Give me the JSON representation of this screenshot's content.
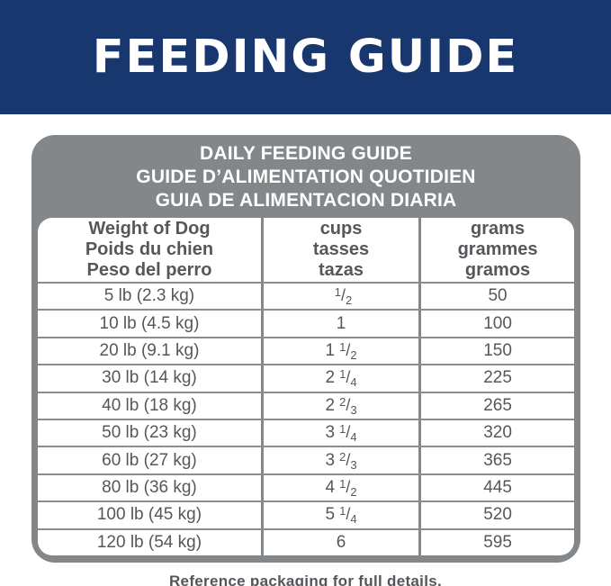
{
  "banner": {
    "title": "FEEDING GUIDE"
  },
  "colors": {
    "banner_bg": "#17376E",
    "card_gray": "#848789",
    "text_gray": "#55575B",
    "table_bg": "#FFFFFF"
  },
  "card": {
    "header_lines": [
      "DAILY FEEDING GUIDE",
      "GUIDE D’ALIMENTATION QUOTIDIEN",
      "GUIA DE ALIMENTACION DIARIA"
    ]
  },
  "table": {
    "columns": [
      {
        "lines": [
          "Weight of Dog",
          "Poids du chien",
          "Peso del perro"
        ]
      },
      {
        "lines": [
          "cups",
          "tasses",
          "tazas"
        ]
      },
      {
        "lines": [
          "grams",
          "grammes",
          "gramos"
        ]
      }
    ],
    "rows": [
      {
        "weight": "5 lb (2.3 kg)",
        "cups": {
          "whole": "",
          "num": "1",
          "den": "2"
        },
        "grams": "50"
      },
      {
        "weight": "10 lb (4.5 kg)",
        "cups": {
          "whole": "1"
        },
        "grams": "100"
      },
      {
        "weight": "20 lb (9.1 kg)",
        "cups": {
          "whole": "1",
          "num": "1",
          "den": "2"
        },
        "grams": "150"
      },
      {
        "weight": "30 lb (14 kg)",
        "cups": {
          "whole": "2",
          "num": "1",
          "den": "4"
        },
        "grams": "225"
      },
      {
        "weight": "40 lb (18 kg)",
        "cups": {
          "whole": "2",
          "num": "2",
          "den": "3"
        },
        "grams": "265"
      },
      {
        "weight": "50 lb (23 kg)",
        "cups": {
          "whole": "3",
          "num": "1",
          "den": "4"
        },
        "grams": "320"
      },
      {
        "weight": "60 lb (27 kg)",
        "cups": {
          "whole": "3",
          "num": "2",
          "den": "3"
        },
        "grams": "365"
      },
      {
        "weight": "80 lb (36 kg)",
        "cups": {
          "whole": "4",
          "num": "1",
          "den": "2"
        },
        "grams": "445"
      },
      {
        "weight": "100 lb (45 kg)",
        "cups": {
          "whole": "5",
          "num": "1",
          "den": "4"
        },
        "grams": "520"
      },
      {
        "weight": "120 lb (54 kg)",
        "cups": {
          "whole": "6"
        },
        "grams": "595"
      }
    ]
  },
  "footer": {
    "note": "Reference packaging for full details."
  }
}
